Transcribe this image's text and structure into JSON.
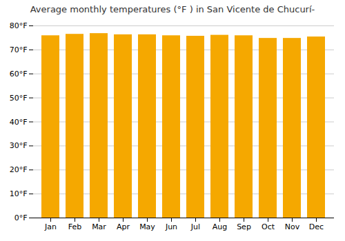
{
  "chart_data": {
    "type": "bar",
    "title": "Average monthly temperatures (°F ) in San Vicente de Chucurí-",
    "categories": [
      "Jan",
      "Feb",
      "Mar",
      "Apr",
      "May",
      "Jun",
      "Jul",
      "Aug",
      "Sep",
      "Oct",
      "Nov",
      "Dec"
    ],
    "values": [
      75.9,
      76.5,
      76.8,
      76.3,
      76.3,
      75.9,
      75.7,
      76.1,
      75.9,
      74.8,
      74.8,
      75.4
    ],
    "color": "#F5A800",
    "ylim": [
      0,
      80
    ],
    "yticks": [
      {
        "value": 0,
        "label": "0°F"
      },
      {
        "value": 10,
        "label": "10°F"
      },
      {
        "value": 20,
        "label": "20°F"
      },
      {
        "value": 30,
        "label": "30°F"
      },
      {
        "value": 40,
        "label": "40°F"
      },
      {
        "value": 50,
        "label": "50°F"
      },
      {
        "value": 60,
        "label": "60°F"
      },
      {
        "value": 70,
        "label": "70°F"
      },
      {
        "value": 80,
        "label": "80°F"
      }
    ],
    "grid": true
  }
}
